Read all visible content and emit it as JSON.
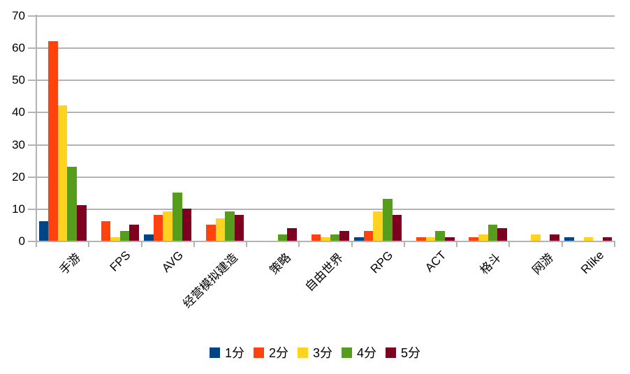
{
  "chart_data": {
    "type": "bar",
    "title": "",
    "categories": [
      "手游",
      "FPS",
      "AVG",
      "经营模拟建造",
      "策略",
      "自由世界",
      "RPG",
      "ACT",
      "格斗",
      "网游",
      "Rlike"
    ],
    "series": [
      {
        "name": "1分",
        "color": "#004586",
        "values": [
          6,
          0,
          2,
          0,
          0,
          0,
          1,
          0,
          0,
          0,
          1
        ]
      },
      {
        "name": "2分",
        "color": "#ff420e",
        "values": [
          62,
          6,
          8,
          5,
          0,
          2,
          3,
          1,
          1,
          0,
          0
        ]
      },
      {
        "name": "3分",
        "color": "#ffd320",
        "values": [
          42,
          1,
          9,
          7,
          0,
          1,
          9,
          1,
          2,
          2,
          1
        ]
      },
      {
        "name": "4分",
        "color": "#579d1c",
        "values": [
          23,
          3,
          15,
          9,
          2,
          2,
          13,
          3,
          5,
          0,
          0
        ]
      },
      {
        "name": "5分",
        "color": "#7e0021",
        "values": [
          11,
          5,
          10,
          8,
          4,
          3,
          8,
          1,
          4,
          2,
          1
        ]
      }
    ],
    "ylim": [
      0,
      70
    ],
    "yticks": [
      0,
      10,
      20,
      30,
      40,
      50,
      60,
      70
    ],
    "grid": true,
    "legend_position": "bottom"
  },
  "colors": {
    "grid": "#b3b3b3",
    "text": "#000000",
    "background": "#ffffff"
  }
}
